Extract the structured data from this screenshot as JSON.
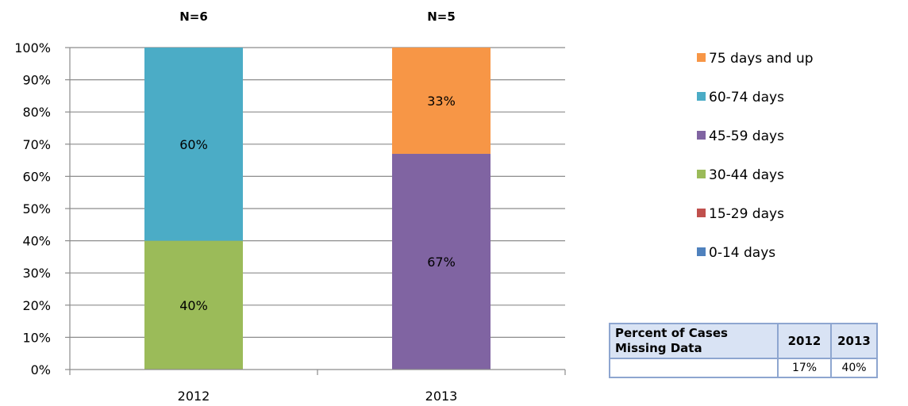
{
  "chart_data": {
    "type": "bar",
    "stacked": true,
    "categories": [
      "2012",
      "2013"
    ],
    "sample_sizes": [
      "N=6",
      "N=5"
    ],
    "ylim": [
      0,
      100
    ],
    "yticks": [
      "0%",
      "10%",
      "20%",
      "30%",
      "40%",
      "50%",
      "60%",
      "70%",
      "80%",
      "90%",
      "100%"
    ],
    "grid": true,
    "legend_position": "right",
    "series": [
      {
        "name": "0-14 days",
        "color": "#4f81bd",
        "values": [
          0,
          0
        ],
        "labels": [
          "",
          ""
        ]
      },
      {
        "name": "15-29 days",
        "color": "#c0504d",
        "values": [
          0,
          0
        ],
        "labels": [
          "",
          ""
        ]
      },
      {
        "name": "30-44 days",
        "color": "#9bbb59",
        "values": [
          40,
          0
        ],
        "labels": [
          "40%",
          ""
        ]
      },
      {
        "name": "45-59 days",
        "color": "#8064a2",
        "values": [
          0,
          67
        ],
        "labels": [
          "",
          "67%"
        ]
      },
      {
        "name": "60-74 days",
        "color": "#4bacc6",
        "values": [
          60,
          0
        ],
        "labels": [
          "60%",
          ""
        ]
      },
      {
        "name": "75 days and up",
        "color": "#f79646",
        "values": [
          0,
          33
        ],
        "labels": [
          "",
          "33%"
        ]
      }
    ]
  },
  "table": {
    "header_label": "Percent of Cases Missing Data",
    "columns": [
      "2012",
      "2013"
    ],
    "row": [
      "",
      "17%",
      "40%"
    ]
  }
}
